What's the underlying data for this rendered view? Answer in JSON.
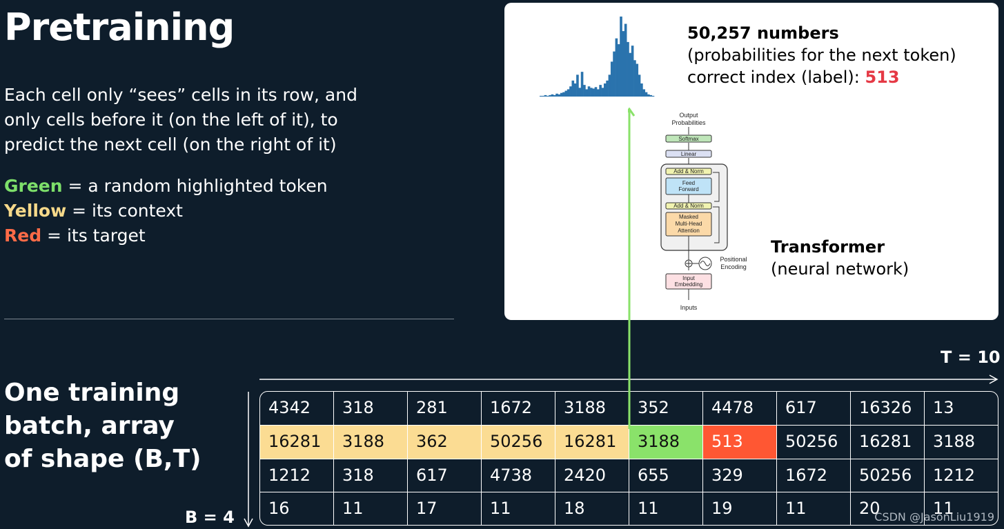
{
  "title": "Pretraining",
  "description": "Each cell only “sees” cells in its row, and only cells before it (on the left of it), to predict the next cell (on the right of it)",
  "legend": {
    "green_word": "Green",
    "green_text": " = a random highlighted token",
    "yellow_word": "Yellow",
    "yellow_text": " = its context",
    "red_word": "Red",
    "red_text": " = its target"
  },
  "batch_label": {
    "line1": "One training",
    "line2": "batch, array",
    "line3": "of shape (B,T)"
  },
  "output": {
    "count": "50,257 numbers",
    "desc": "(probabilities for the next token)",
    "label_prefix": "correct index (label): ",
    "label_value": "513"
  },
  "transformer": {
    "title": "Transformer",
    "subtitle": "(neural network)",
    "diagram": {
      "output_probs_1": "Output",
      "output_probs_2": "Probabilities",
      "softmax": "Softmax",
      "linear": "Linear",
      "add_norm_1": "Add & Norm",
      "feed_1": "Feed",
      "feed_2": "Forward",
      "add_norm_2": "Add & Norm",
      "masked_1": "Masked",
      "masked_2": "Multi-Head",
      "masked_3": "Attention",
      "pos_1": "Positional",
      "pos_2": "Encoding",
      "input_emb_1": "Input",
      "input_emb_2": "Embedding",
      "inputs": "Inputs"
    }
  },
  "axes": {
    "t_label": "T = 10",
    "b_label": "B = 4"
  },
  "grid": [
    [
      "4342",
      "318",
      "281",
      "1672",
      "3188",
      "352",
      "4478",
      "617",
      "16326",
      "13"
    ],
    [
      "16281",
      "3188",
      "362",
      "50256",
      "16281",
      "3188",
      "513",
      "50256",
      "16281",
      "3188"
    ],
    [
      "1212",
      "318",
      "617",
      "4738",
      "2420",
      "655",
      "329",
      "1672",
      "50256",
      "1212"
    ],
    [
      "16",
      "11",
      "17",
      "11",
      "18",
      "11",
      "19",
      "11",
      "20",
      "11"
    ]
  ],
  "highlight": {
    "row": 1,
    "current_col": 5,
    "target_col": 6
  },
  "histogram": [
    1,
    1,
    2,
    1,
    2,
    3,
    2,
    4,
    3,
    5,
    6,
    8,
    10,
    14,
    22,
    18,
    30,
    12,
    34,
    16,
    10,
    14,
    12,
    11,
    13,
    10,
    16,
    12,
    18,
    22,
    30,
    48,
    62,
    80,
    72,
    110,
    90,
    100,
    75,
    60,
    70,
    50,
    45,
    30,
    18,
    10,
    6,
    3,
    2,
    1
  ],
  "colors": {
    "green": "#8ae26a",
    "yellow": "#fbdc93",
    "red": "#ff5733",
    "histogram": "#2a73ad"
  },
  "watermark": "CSDN @JasonLiu1919"
}
